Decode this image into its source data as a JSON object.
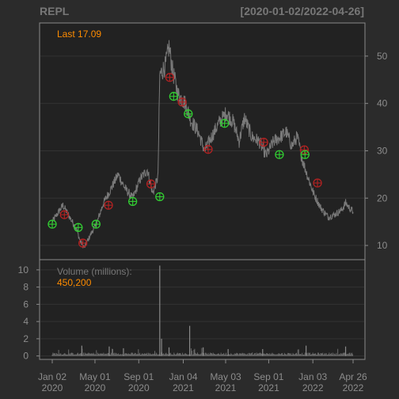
{
  "chart_data": {
    "type": "line",
    "title_left": "REPL",
    "title_right": "[2020-01-02/2022-04-26]",
    "colors": {
      "background": "#2b2b2b",
      "panel": "#222222",
      "frame": "#8a8a8a",
      "grid": "#333333",
      "price_line": "#7a7a7a",
      "volume_bar": "#6b6b6b",
      "label": "#8c8c8c",
      "last_label": "#ff8c00",
      "red_marker": "#b22222",
      "green_marker": "#32cd32"
    },
    "price_panel": {
      "last_label": "Last 17.09",
      "y_ticks": [
        10,
        20,
        30,
        40,
        50
      ],
      "ylim": [
        7,
        57
      ],
      "anchors": [
        [
          "2020-01-02",
          15.0
        ],
        [
          "2020-02-01",
          18.5
        ],
        [
          "2020-02-20",
          16.0
        ],
        [
          "2020-03-10",
          13.5
        ],
        [
          "2020-03-20",
          11.0
        ],
        [
          "2020-04-01",
          9.5
        ],
        [
          "2020-04-20",
          12.5
        ],
        [
          "2020-05-05",
          14.5
        ],
        [
          "2020-05-25",
          19.0
        ],
        [
          "2020-06-15",
          22.0
        ],
        [
          "2020-07-05",
          25.0
        ],
        [
          "2020-07-25",
          22.0
        ],
        [
          "2020-08-15",
          20.0
        ],
        [
          "2020-09-05",
          24.0
        ],
        [
          "2020-09-25",
          26.0
        ],
        [
          "2020-10-10",
          21.0
        ],
        [
          "2020-10-25",
          24.5
        ],
        [
          "2020-10-30",
          46.0
        ],
        [
          "2020-11-15",
          48.0
        ],
        [
          "2020-11-25",
          52.0
        ],
        [
          "2020-12-05",
          47.0
        ],
        [
          "2020-12-20",
          42.0
        ],
        [
          "2021-01-10",
          40.0
        ],
        [
          "2021-01-25",
          36.5
        ],
        [
          "2021-02-15",
          34.0
        ],
        [
          "2021-03-05",
          30.0
        ],
        [
          "2021-03-25",
          33.0
        ],
        [
          "2021-04-15",
          36.0
        ],
        [
          "2021-05-05",
          38.0
        ],
        [
          "2021-05-25",
          36.0
        ],
        [
          "2021-06-10",
          32.0
        ],
        [
          "2021-06-25",
          37.0
        ],
        [
          "2021-07-15",
          33.0
        ],
        [
          "2021-08-05",
          32.0
        ],
        [
          "2021-08-25",
          29.0
        ],
        [
          "2021-09-15",
          32.0
        ],
        [
          "2021-10-05",
          33.0
        ],
        [
          "2021-10-20",
          34.0
        ],
        [
          "2021-11-05",
          31.0
        ],
        [
          "2021-11-20",
          33.0
        ],
        [
          "2021-12-05",
          28.0
        ],
        [
          "2021-12-20",
          24.5
        ],
        [
          "2022-01-05",
          21.0
        ],
        [
          "2022-01-25",
          18.0
        ],
        [
          "2022-02-15",
          16.0
        ],
        [
          "2022-03-05",
          16.5
        ],
        [
          "2022-03-25",
          17.5
        ],
        [
          "2022-04-05",
          19.0
        ],
        [
          "2022-04-15",
          18.0
        ],
        [
          "2022-04-26",
          17.09
        ]
      ],
      "red_markers": [
        [
          "2020-02-05",
          16.5
        ],
        [
          "2020-03-28",
          10.5
        ],
        [
          "2020-06-08",
          18.5
        ],
        [
          "2020-10-05",
          23.0
        ],
        [
          "2020-11-27",
          45.5
        ],
        [
          "2021-01-01",
          40.3
        ],
        [
          "2021-03-15",
          30.3
        ],
        [
          "2021-08-18",
          31.8
        ],
        [
          "2021-12-10",
          30.2
        ],
        [
          "2022-01-16",
          23.2
        ]
      ],
      "green_markers": [
        [
          "2020-01-02",
          14.5
        ],
        [
          "2020-03-15",
          13.8
        ],
        [
          "2020-05-04",
          14.5
        ],
        [
          "2020-08-15",
          19.3
        ],
        [
          "2020-10-30",
          20.3
        ],
        [
          "2020-12-08",
          41.5
        ],
        [
          "2021-01-18",
          37.8
        ],
        [
          "2021-04-30",
          35.8
        ],
        [
          "2021-10-01",
          29.2
        ],
        [
          "2021-12-12",
          29.2
        ]
      ]
    },
    "volume_panel": {
      "label": "Volume (millions):",
      "value_label": "450,200",
      "y_ticks": [
        0,
        2,
        4,
        6,
        8,
        10
      ],
      "ylim": [
        -0.4,
        11
      ],
      "baseline": 0.3,
      "spikes": [
        [
          "2020-10-30",
          10.5
        ],
        [
          "2020-11-04",
          2.0
        ],
        [
          "2021-01-22",
          3.5
        ],
        [
          "2020-03-25",
          1.2
        ],
        [
          "2020-06-10",
          1.1
        ],
        [
          "2020-07-20",
          0.9
        ],
        [
          "2020-11-25",
          1.0
        ],
        [
          "2021-03-01",
          1.0
        ],
        [
          "2021-05-10",
          0.8
        ],
        [
          "2021-08-15",
          0.8
        ],
        [
          "2021-12-15",
          1.2
        ],
        [
          "2022-04-05",
          1.1
        ]
      ]
    },
    "x_axis": {
      "start": "2020-01-02",
      "end": "2022-04-26",
      "ticks": [
        {
          "date": "2020-01-02",
          "line1": "Jan 02",
          "line2": "2020"
        },
        {
          "date": "2020-05-01",
          "line1": "May 01",
          "line2": "2020"
        },
        {
          "date": "2020-09-01",
          "line1": "Sep 01",
          "line2": "2020"
        },
        {
          "date": "2021-01-04",
          "line1": "Jan 04",
          "line2": "2021"
        },
        {
          "date": "2021-05-03",
          "line1": "May 03",
          "line2": "2021"
        },
        {
          "date": "2021-09-01",
          "line1": "Sep 01",
          "line2": "2021"
        },
        {
          "date": "2022-01-03",
          "line1": "Jan 03",
          "line2": "2022"
        },
        {
          "date": "2022-04-26",
          "line1": "Apr 26",
          "line2": "2022"
        }
      ]
    }
  }
}
